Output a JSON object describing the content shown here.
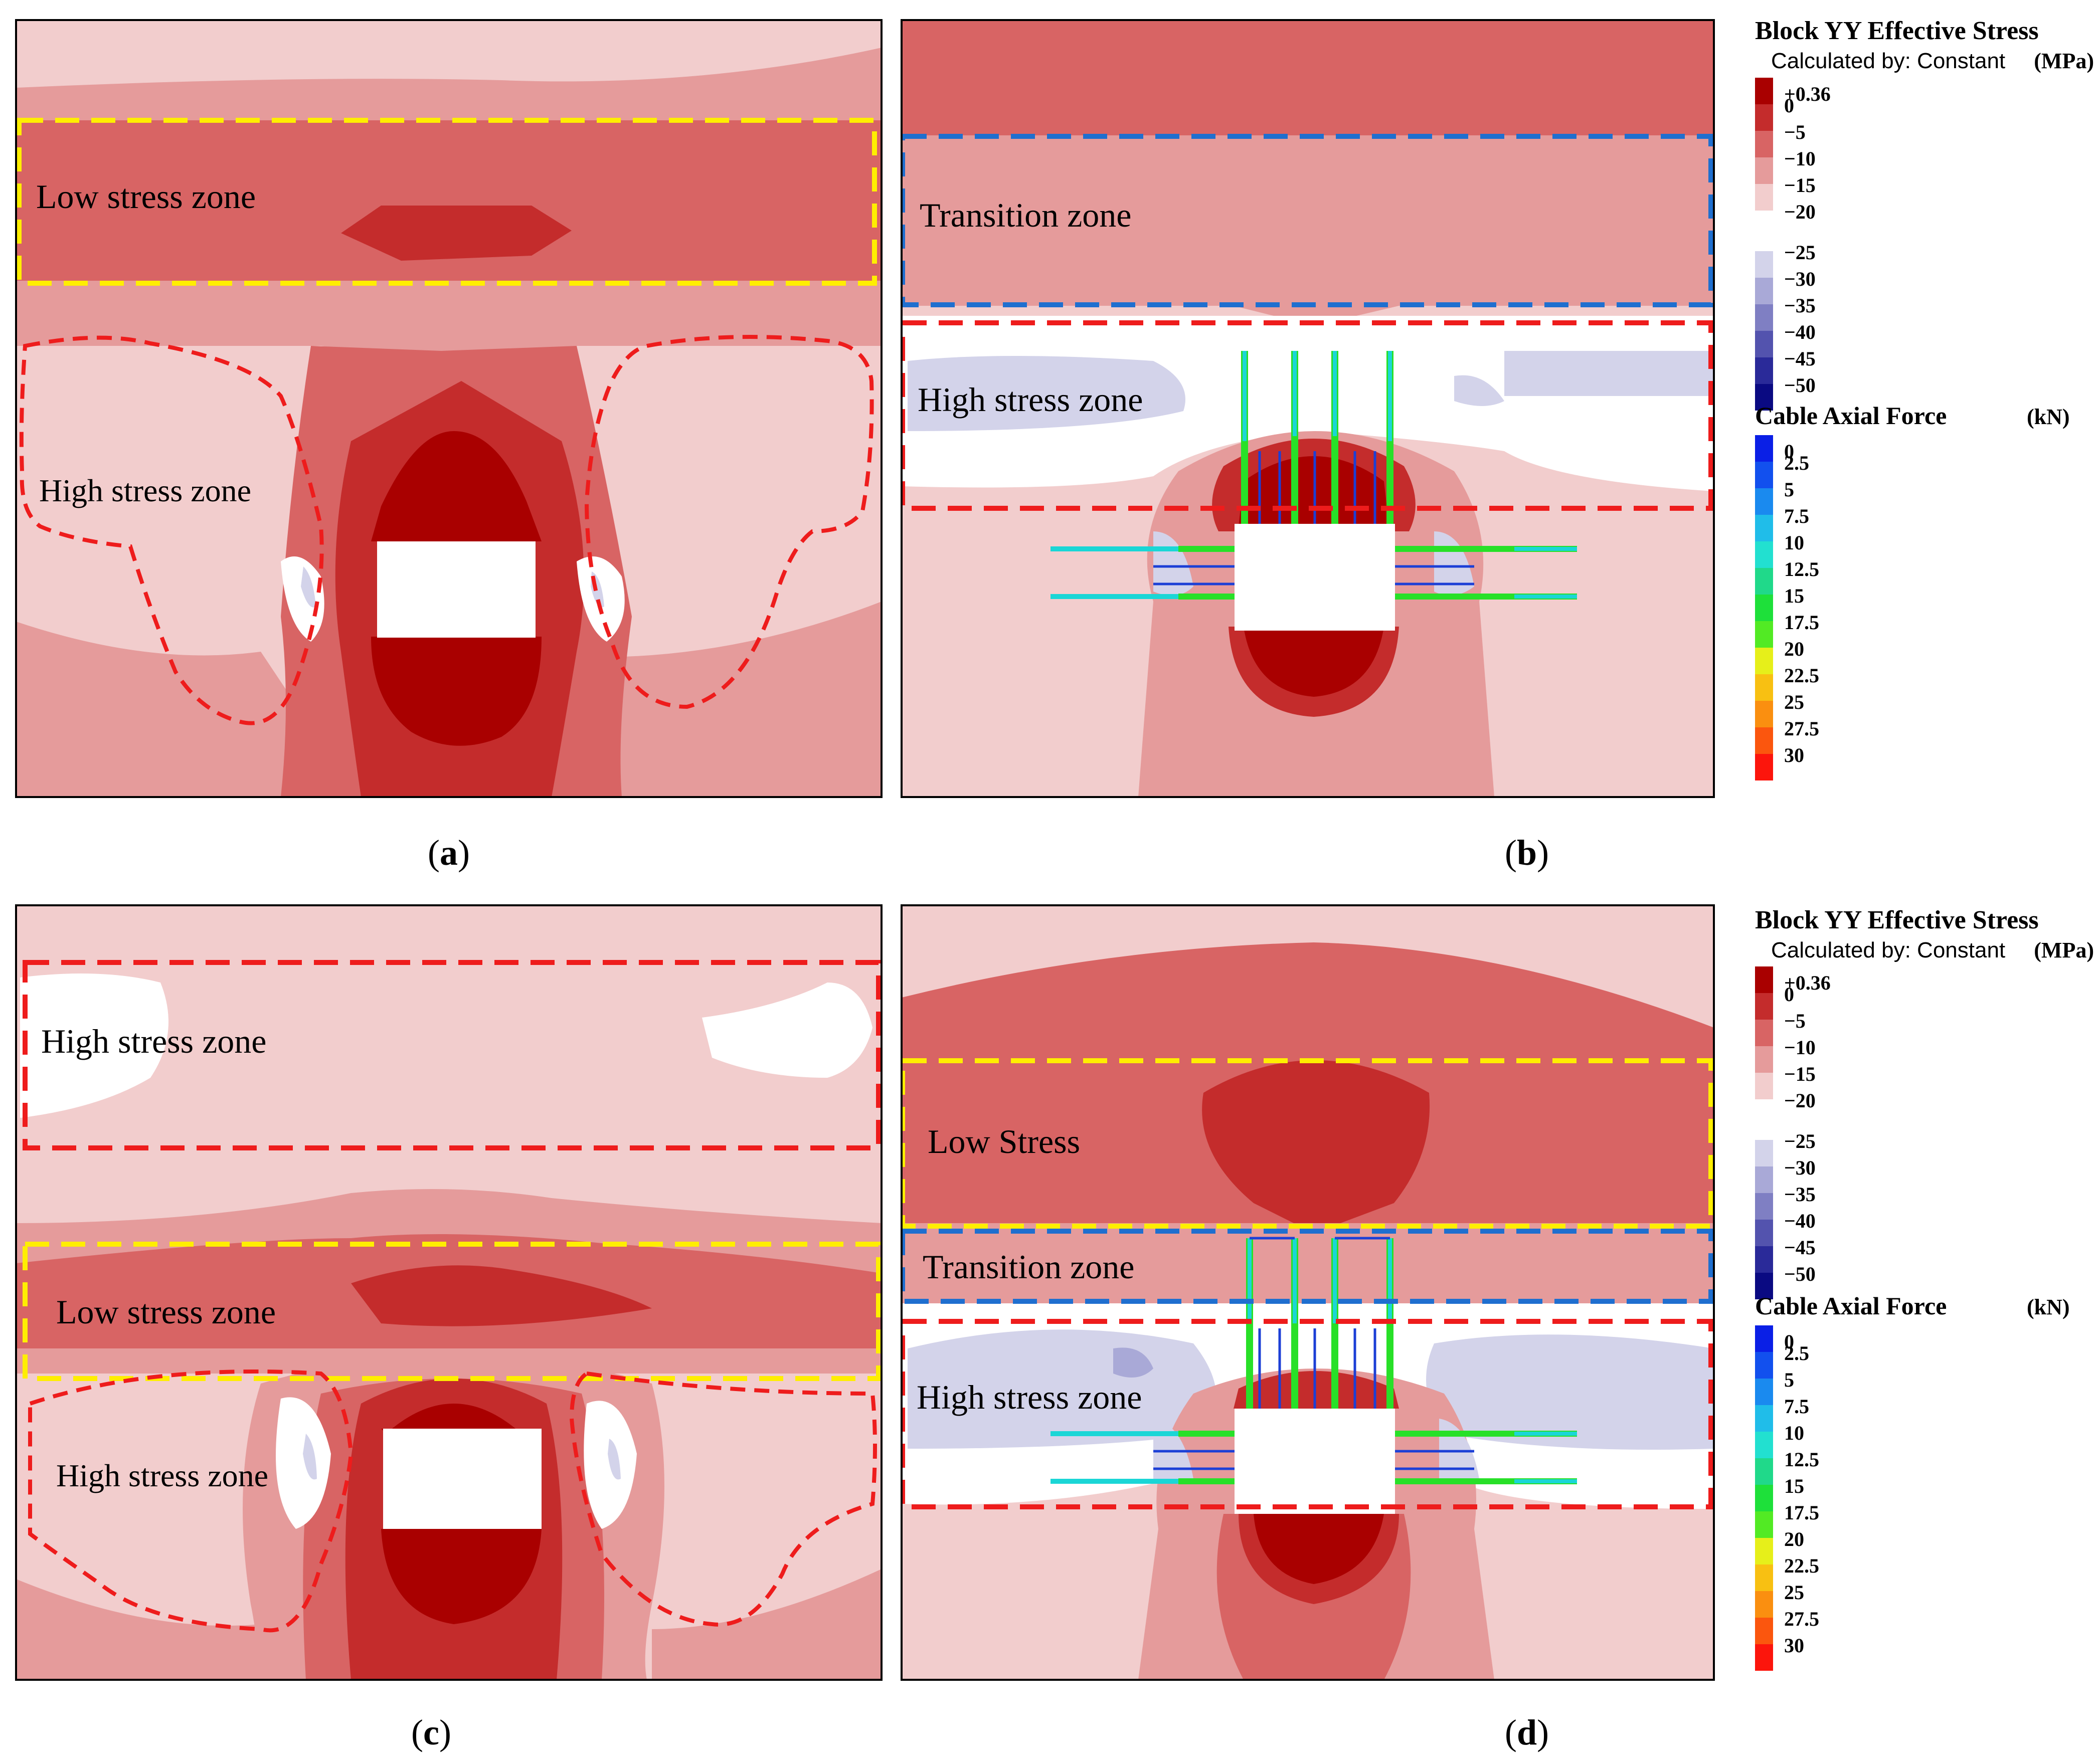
{
  "colors": {
    "s_pos": "#a90000",
    "s_0": "#c42c2c",
    "s_m5": "#d86464",
    "s_m10": "#e59b9b",
    "s_m15": "#f2cdcd",
    "s_m20": "#ffffff",
    "s_m25": "#d3d3ea",
    "s_m30": "#a9a9d7",
    "s_m35": "#7f7fc3",
    "s_m40": "#5353ae",
    "s_m45": "#2a2a99",
    "s_m50": "#0a0a82",
    "yellow_dash": "#ffee00",
    "red_dash": "#ee1c1c",
    "blue_dash": "#1f6fcf",
    "cable_blue": "#1c3fd6",
    "cable_cyan": "#1ad6d6",
    "cable_green": "#28e028"
  },
  "legend_stress": {
    "title": "Block YY Effective Stress",
    "subtitle": "Calculated by: Constant",
    "unit": "(MPa)",
    "items": [
      {
        "label": "+0.36",
        "color": "#a90000"
      },
      {
        "label": "0",
        "color": "#c42c2c"
      },
      {
        "label": "−5",
        "color": "#d86464"
      },
      {
        "label": "−10",
        "color": "#e59b9b"
      },
      {
        "label": "−15",
        "color": "#f2cdcd"
      },
      {
        "label": "−20",
        "color": "#ffffff"
      },
      {
        "label": "−25",
        "color": "#d3d3ea"
      },
      {
        "label": "−30",
        "color": "#a9a9d7"
      },
      {
        "label": "−35",
        "color": "#7f7fc3"
      },
      {
        "label": "−40",
        "color": "#5353ae"
      },
      {
        "label": "−45",
        "color": "#2a2a99"
      },
      {
        "label": "−50",
        "color": "#0a0a82"
      }
    ]
  },
  "legend_cable": {
    "title": "Cable Axial Force",
    "unit": "(kN)",
    "items": [
      {
        "label": "0",
        "color": "#0a1fe6"
      },
      {
        "label": "2.5",
        "color": "#1250ee"
      },
      {
        "label": "5",
        "color": "#1a8aef"
      },
      {
        "label": "7.5",
        "color": "#20bde9"
      },
      {
        "label": "10",
        "color": "#22e0d0"
      },
      {
        "label": "12.5",
        "color": "#20d98a"
      },
      {
        "label": "15",
        "color": "#1ee03a"
      },
      {
        "label": "17.5",
        "color": "#52ea24"
      },
      {
        "label": "20",
        "color": "#e6ef1a"
      },
      {
        "label": "22.5",
        "color": "#f8c012"
      },
      {
        "label": "25",
        "color": "#fa8f10"
      },
      {
        "label": "27.5",
        "color": "#fb560e"
      },
      {
        "label": "30",
        "color": "#fc150c"
      }
    ]
  },
  "panels": {
    "a": {
      "caption_open": "(",
      "caption_letter": "a",
      "caption_close": ")",
      "zone_low": "Low stress zone",
      "zone_high": "High stress zone"
    },
    "b": {
      "caption_open": "(",
      "caption_letter": "b",
      "caption_close": ")",
      "zone_transition": "Transition zone",
      "zone_high": "High stress zone"
    },
    "c": {
      "caption_open": "(",
      "caption_letter": "c",
      "caption_close": ")",
      "zone_high_top": "High stress zone",
      "zone_low": "Low stress zone",
      "zone_high_bottom": "High stress zone"
    },
    "d": {
      "caption_open": "(",
      "caption_letter": "d",
      "caption_close": ")",
      "zone_low": "Low Stress",
      "zone_transition": "Transition zone",
      "zone_high": "High stress zone"
    }
  }
}
